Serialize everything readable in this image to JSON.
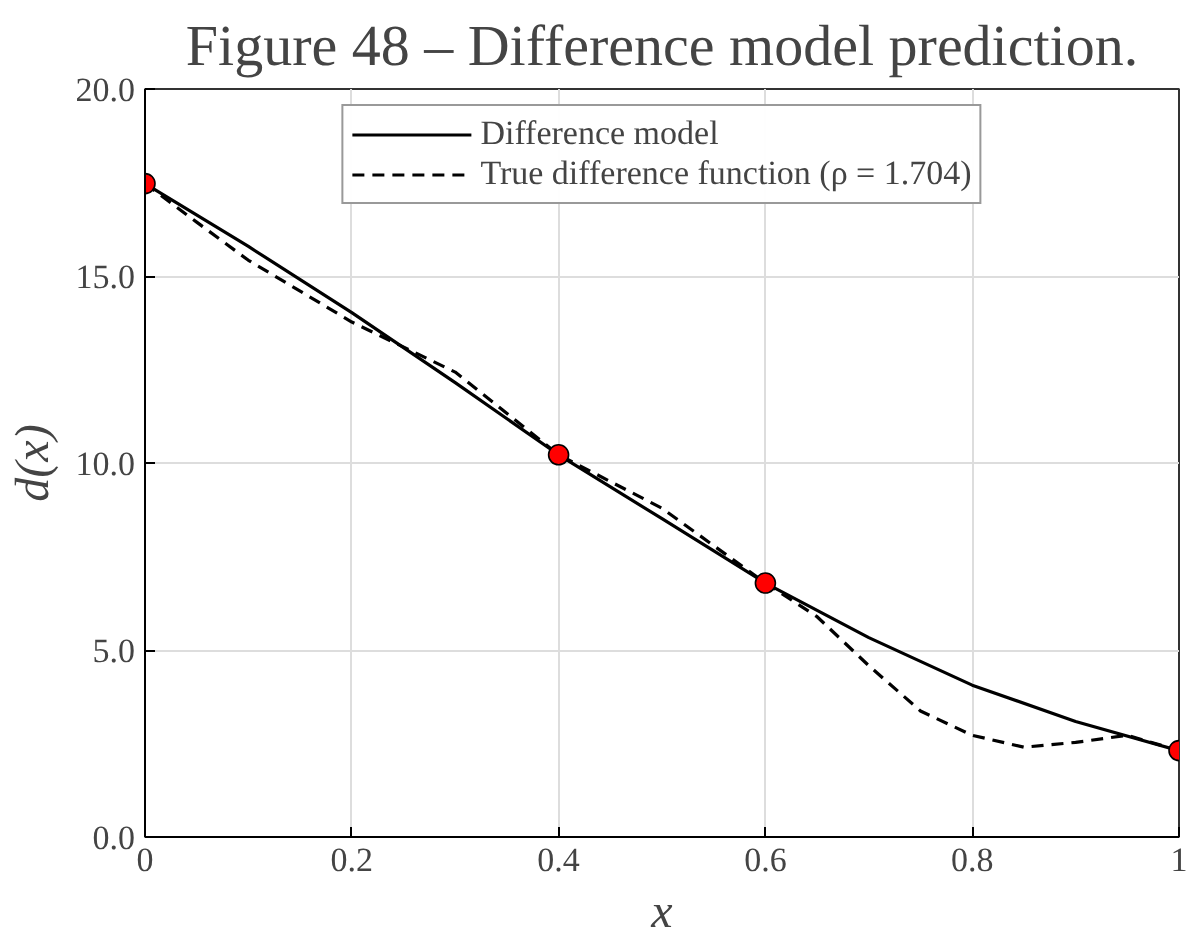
{
  "chart_data": {
    "type": "line",
    "title": "Figure 48 – Difference model prediction.",
    "xlabel": "x",
    "ylabel": "d(x)",
    "xlim": [
      0,
      1
    ],
    "ylim": [
      0,
      20
    ],
    "xticks": [
      0,
      0.2,
      0.4,
      0.6,
      0.8,
      1
    ],
    "yticks": [
      {
        "value": 0,
        "label": "0.0"
      },
      {
        "value": 5,
        "label": "5.0"
      },
      {
        "value": 10,
        "label": "10.0"
      },
      {
        "value": 15,
        "label": "15.0"
      },
      {
        "value": 20,
        "label": "20.0"
      }
    ],
    "grid": true,
    "legend": "top",
    "series": [
      {
        "name": "Difference model",
        "color": "#000000",
        "line_style": "solid",
        "marker": "none",
        "x": [
          0,
          0.1,
          0.2,
          0.3,
          0.4,
          0.5,
          0.6,
          0.7,
          0.8,
          0.9,
          1
        ],
        "values": [
          17.47,
          15.79,
          14.02,
          12.15,
          10.22,
          8.51,
          6.79,
          5.33,
          4.06,
          3.09,
          2.31
        ]
      },
      {
        "name": "True difference function (ρ = 1.704)",
        "color": "#000000",
        "line_style": "dashed",
        "marker": "none",
        "x": [
          0,
          0.05,
          0.1,
          0.2,
          0.3,
          0.4,
          0.5,
          0.6,
          0.65,
          0.7,
          0.75,
          0.8,
          0.85,
          0.9,
          0.95,
          1
        ],
        "values": [
          17.47,
          16.44,
          15.42,
          13.77,
          12.43,
          10.22,
          8.79,
          6.79,
          5.89,
          4.58,
          3.37,
          2.72,
          2.4,
          2.53,
          2.72,
          2.31
        ]
      },
      {
        "type": "scatter",
        "color": "#ff0000",
        "marker": "circle",
        "x": [
          0,
          0.4,
          0.6,
          1
        ],
        "values": [
          17.47,
          10.22,
          6.79,
          2.31
        ]
      }
    ]
  }
}
